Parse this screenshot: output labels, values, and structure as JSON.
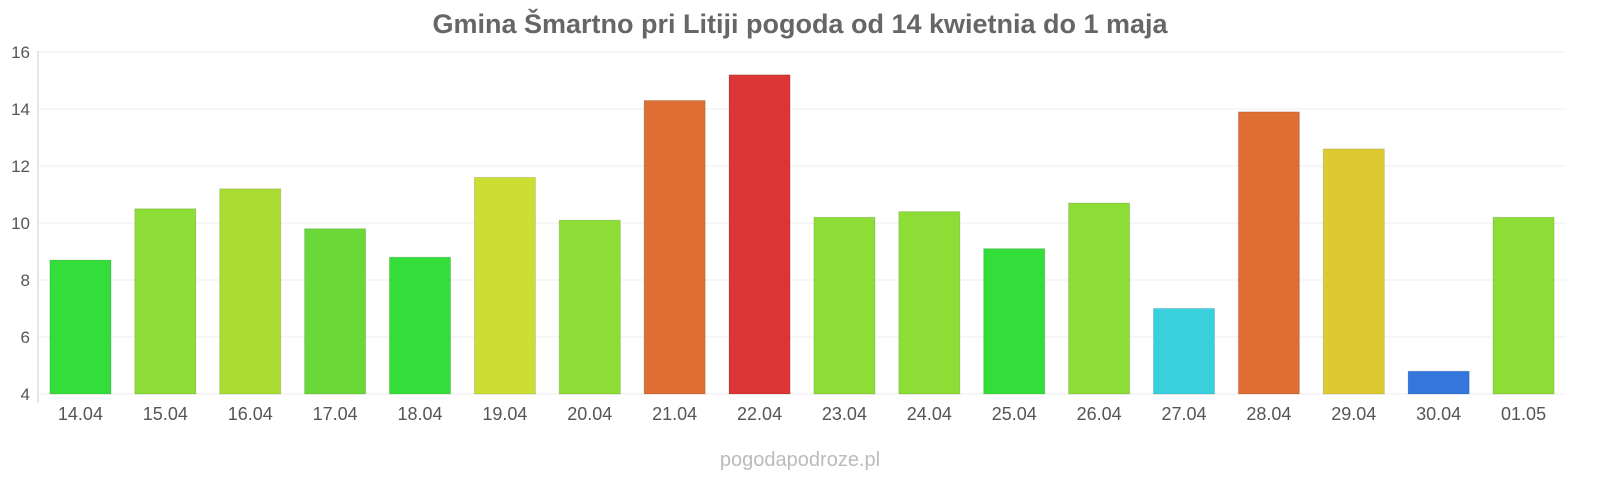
{
  "chart_data": {
    "type": "bar",
    "title": "Gmina Šmartno pri Litiji pogoda od 14 kwietnia do 1 maja",
    "categories": [
      "14.04",
      "15.04",
      "16.04",
      "17.04",
      "18.04",
      "19.04",
      "20.04",
      "21.04",
      "22.04",
      "23.04",
      "24.04",
      "25.04",
      "26.04",
      "27.04",
      "28.04",
      "29.04",
      "30.04",
      "01.05"
    ],
    "values": [
      8.7,
      10.5,
      11.2,
      9.8,
      8.8,
      11.6,
      10.1,
      14.3,
      15.2,
      10.2,
      10.4,
      9.1,
      10.7,
      7.0,
      13.9,
      12.6,
      4.8,
      10.2
    ],
    "colors": [
      "#33dd3a",
      "#8cdd35",
      "#aadd33",
      "#6ad838",
      "#33dd3a",
      "#ccdd33",
      "#8cdd35",
      "#de6e33",
      "#db3535",
      "#8cdd35",
      "#8cdd35",
      "#33dd3a",
      "#8cdd35",
      "#38d0dd",
      "#de6e33",
      "#ddca33",
      "#3377dd",
      "#8cdd35"
    ],
    "yticks": [
      4,
      6,
      8,
      10,
      12,
      14,
      16
    ],
    "ylim": [
      4,
      16
    ],
    "xlabel": "",
    "ylabel": "",
    "grid": true,
    "legend": "none"
  },
  "watermark": "pogodapodroze.pl"
}
